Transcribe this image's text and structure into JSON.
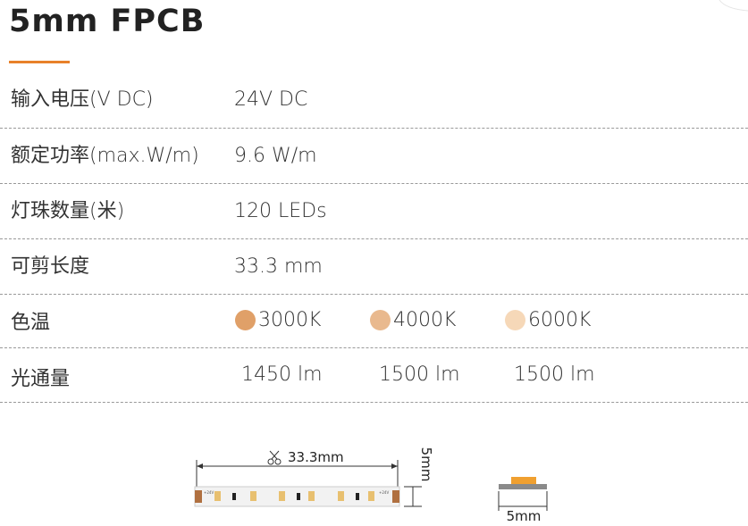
{
  "header": {
    "title": "5mm FPCB"
  },
  "specs": [
    {
      "label": "输入电压(V DC)",
      "value": "24V DC"
    },
    {
      "label": "额定功率(max.W/m)",
      "value": "9.6 W/m"
    },
    {
      "label": "灯珠数量(米)",
      "value": "120 LEDs"
    },
    {
      "label": "可剪长度",
      "value": "33.3 mm"
    }
  ],
  "color_temp": {
    "label": "色温",
    "options": [
      {
        "name": "3000K",
        "color": "#e0a068"
      },
      {
        "name": "4000K",
        "color": "#e9b98e"
      },
      {
        "name": "6000K",
        "color": "#f6d8b8"
      }
    ]
  },
  "flux": {
    "label": "光通量",
    "values": [
      "1450 lm",
      "1500 lm",
      "1500 lm"
    ]
  },
  "diagram": {
    "cut_length": "33.3mm",
    "width": "5mm",
    "side_width": "5mm",
    "pad_label": "+24V"
  }
}
